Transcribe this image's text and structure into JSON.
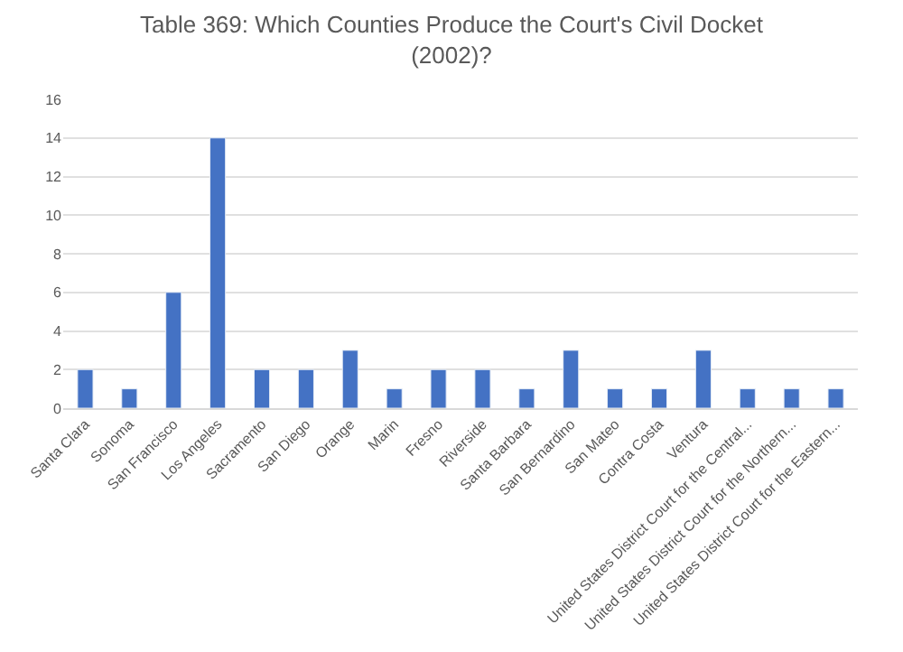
{
  "chart_data": {
    "type": "bar",
    "title": "Table 369: Which Counties Produce the Court's Civil Docket (2002)?",
    "categories": [
      "Santa Clara",
      "Sonoma",
      "San Francisco",
      "Los Angeles",
      "Sacramento",
      "San Diego",
      "Orange",
      "Marin",
      "Fresno",
      "Riverside",
      "Santa Barbara",
      "San Bernardino",
      "San Mateo",
      "Contra Costa",
      "Ventura",
      "United States District Court for the Central...",
      "United States District Court for the Northern...",
      "United States District Court for the Eastern..."
    ],
    "values": [
      2,
      1,
      6,
      14,
      2,
      2,
      3,
      1,
      2,
      2,
      1,
      3,
      1,
      1,
      3,
      1,
      1,
      1
    ],
    "color": "#4472c4",
    "ylim": [
      0,
      16
    ],
    "yticks": [
      0,
      2,
      4,
      6,
      8,
      10,
      12,
      14,
      16
    ],
    "grid": "y"
  }
}
